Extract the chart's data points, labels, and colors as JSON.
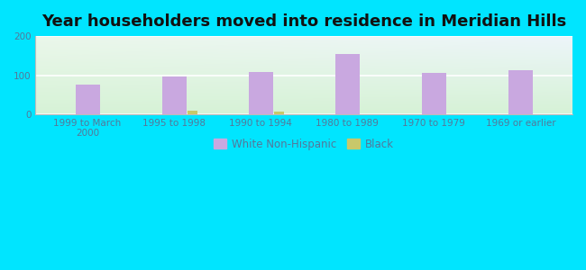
{
  "title": "Year householders moved into residence in Meridian Hills",
  "categories": [
    "1999 to March\n2000",
    "1995 to 1998",
    "1990 to 1994",
    "1980 to 1989",
    "1970 to 1979",
    "1969 or earlier"
  ],
  "white_values": [
    75,
    97,
    109,
    155,
    106,
    113
  ],
  "black_values": [
    0,
    8,
    7,
    0,
    0,
    0
  ],
  "white_color": "#c9a8e0",
  "black_color": "#c8c86a",
  "bg_outer": "#00e5ff",
  "bg_plot_top_left": "#e0f0e8",
  "bg_plot_top_right": "#ddeef8",
  "bg_plot_bottom": "#d8f0d0",
  "ylim": [
    0,
    200
  ],
  "yticks": [
    0,
    100,
    200
  ],
  "bar_width": 0.28,
  "black_bar_width": 0.12,
  "title_fontsize": 13,
  "tick_fontsize": 7.5,
  "legend_fontsize": 8.5,
  "tick_color": "#557799",
  "label_color": "#557799"
}
